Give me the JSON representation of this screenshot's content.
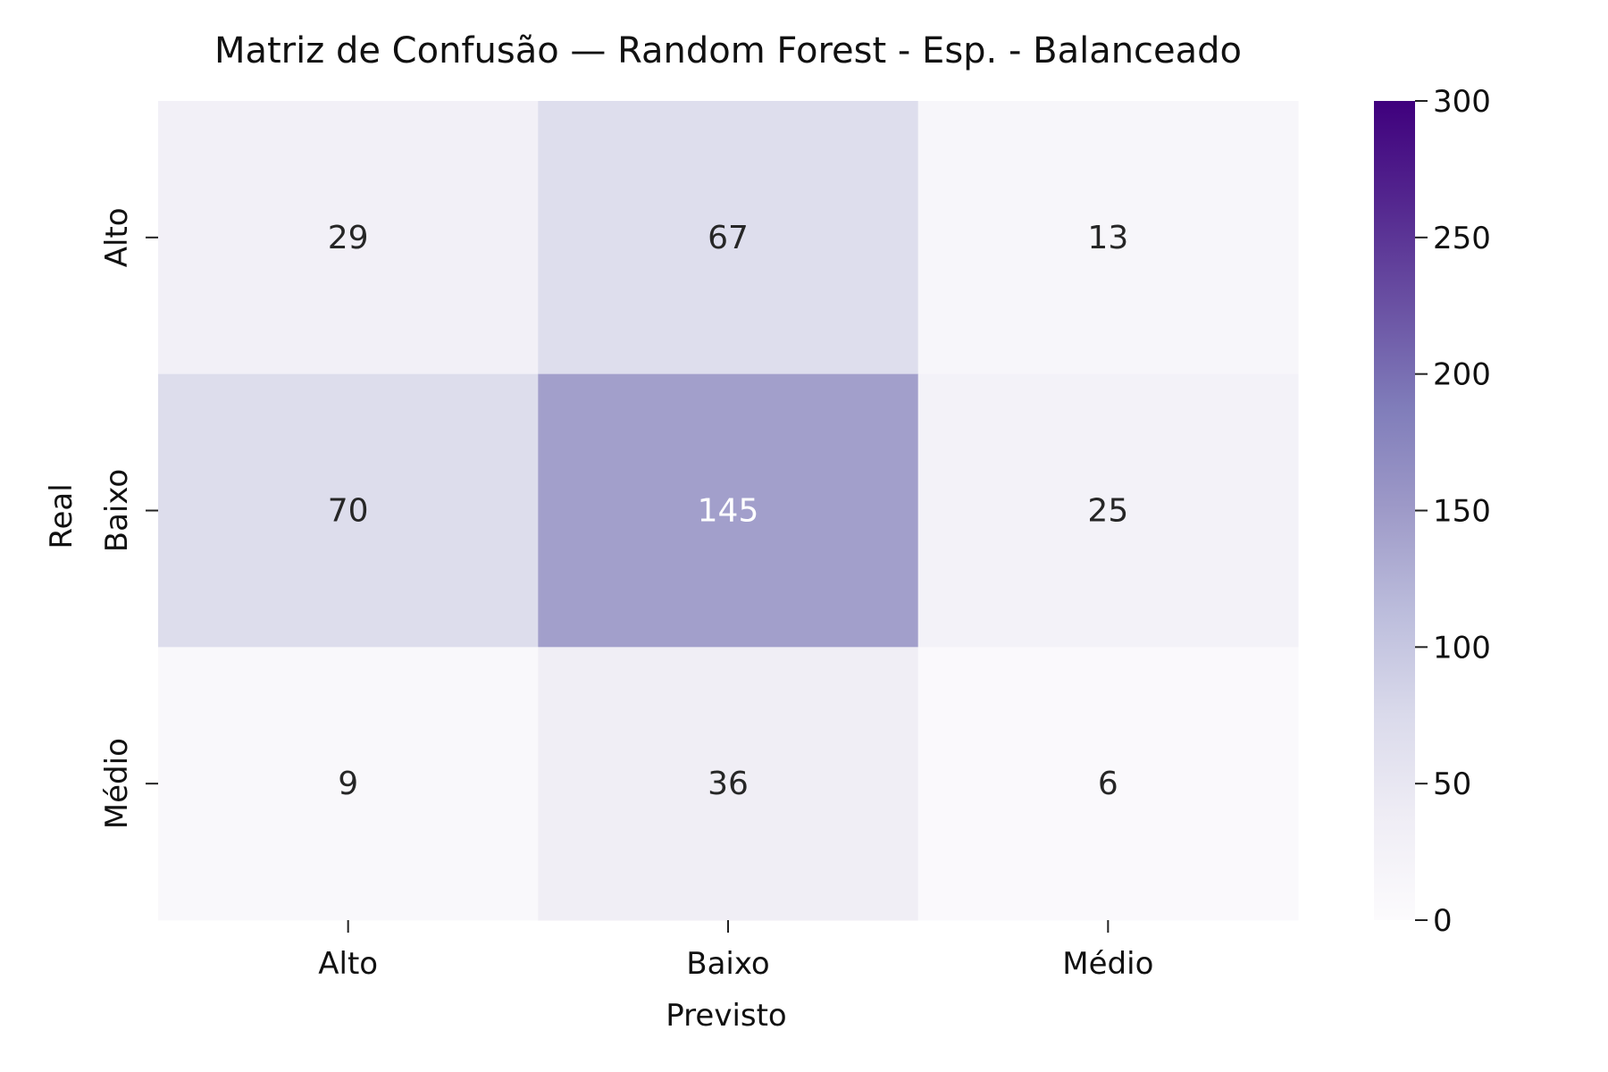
{
  "chart_data": {
    "type": "heatmap",
    "title": "Matriz de Confusão — Random Forest - Esp. - Balanceado",
    "xlabel": "Previsto",
    "ylabel": "Real",
    "x_categories": [
      "Alto",
      "Baixo",
      "Médio"
    ],
    "y_categories": [
      "Alto",
      "Baixo",
      "Médio"
    ],
    "values": [
      [
        29,
        67,
        13
      ],
      [
        70,
        145,
        25
      ],
      [
        9,
        36,
        6
      ]
    ],
    "colormap": "Purples",
    "vmin": 0,
    "vmax": 300,
    "colorbar_ticks": [
      0,
      50,
      100,
      150,
      200,
      250,
      300
    ],
    "colors": {
      "low": "#fcfbfd",
      "high": "#3f007d",
      "text_dark": "#262626",
      "text_light": "#ffffff"
    }
  }
}
